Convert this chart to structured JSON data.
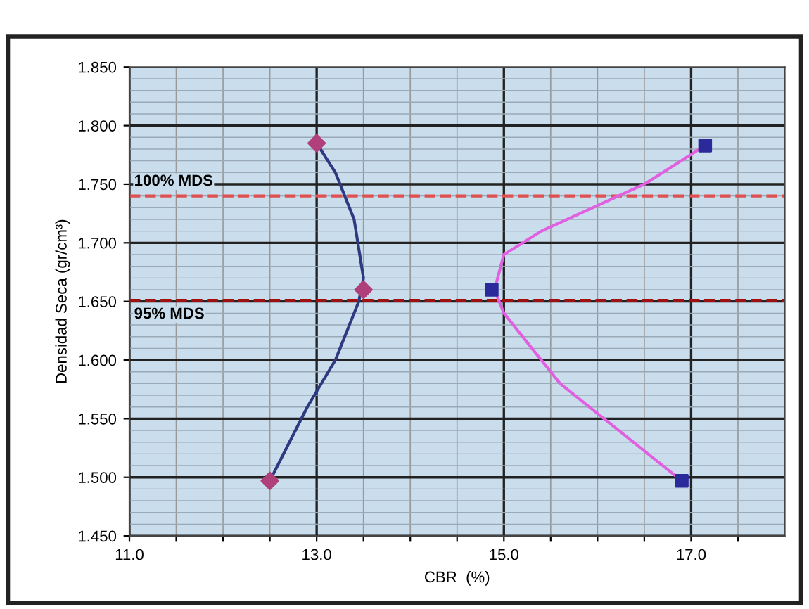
{
  "chart_data": {
    "type": "scatter",
    "xlabel": "CBR  (%)",
    "ylabel": "Densidad Seca (gr/cm³)",
    "xlim": [
      11,
      18
    ],
    "ylim": [
      1.45,
      1.85
    ],
    "xticks": [
      {
        "value": 11,
        "label": "11.0"
      },
      {
        "value": 11.5,
        "label": null
      },
      {
        "value": 12,
        "label": null
      },
      {
        "value": 12.5,
        "label": null
      },
      {
        "value": 13,
        "label": "13.0"
      },
      {
        "value": 13.5,
        "label": null
      },
      {
        "value": 14,
        "label": null
      },
      {
        "value": 14.5,
        "label": null
      },
      {
        "value": 15,
        "label": "15.0"
      },
      {
        "value": 15.5,
        "label": null
      },
      {
        "value": 16,
        "label": null
      },
      {
        "value": 16.5,
        "label": null
      },
      {
        "value": 17,
        "label": "17.0"
      },
      {
        "value": 17.5,
        "label": null
      }
    ],
    "yticks": [
      {
        "value": 1.45,
        "label": "1.450"
      },
      {
        "value": 1.5,
        "label": "1.500"
      },
      {
        "value": 1.55,
        "label": "1.550"
      },
      {
        "value": 1.6,
        "label": "1.600"
      },
      {
        "value": 1.65,
        "label": "1.650"
      },
      {
        "value": 1.7,
        "label": "1.700"
      },
      {
        "value": 1.75,
        "label": "1.750"
      },
      {
        "value": 1.8,
        "label": "1.800"
      },
      {
        "value": 1.85,
        "label": "1.850"
      }
    ],
    "grid": true,
    "series": [
      {
        "type": "line",
        "marker": "none",
        "color": "#2e3a80",
        "x": [
          12.5,
          12.9,
          13.2,
          13.45,
          13.5,
          13.4,
          13.2,
          13.0
        ],
        "values": [
          1.497,
          1.56,
          1.6,
          1.65,
          1.67,
          1.72,
          1.76,
          1.785
        ]
      },
      {
        "type": "line",
        "marker": "none",
        "color": "#e060e0",
        "x": [
          16.9,
          15.6,
          15.0,
          14.9,
          15.0,
          15.4,
          16.5,
          17.15
        ],
        "values": [
          1.497,
          1.58,
          1.64,
          1.66,
          1.69,
          1.71,
          1.75,
          1.783
        ]
      },
      {
        "marker": "diamond",
        "color": "#b0407a",
        "x": [
          12.5,
          13.0,
          13.5
        ],
        "values": [
          1.497,
          1.785,
          1.66
        ]
      },
      {
        "marker": "square",
        "color": "#2a2a9a",
        "x": [
          14.87,
          17.15,
          16.9
        ],
        "values": [
          1.66,
          1.783,
          1.497
        ]
      }
    ],
    "ref_lines": [
      {
        "axis": "y",
        "value": 1.74,
        "label": "100% MDS",
        "color": "#e05050",
        "line_style": "dashed"
      },
      {
        "axis": "y",
        "value": 1.651,
        "label": "95% MDS",
        "color": "#a01010",
        "line_style": "dashed"
      }
    ]
  }
}
